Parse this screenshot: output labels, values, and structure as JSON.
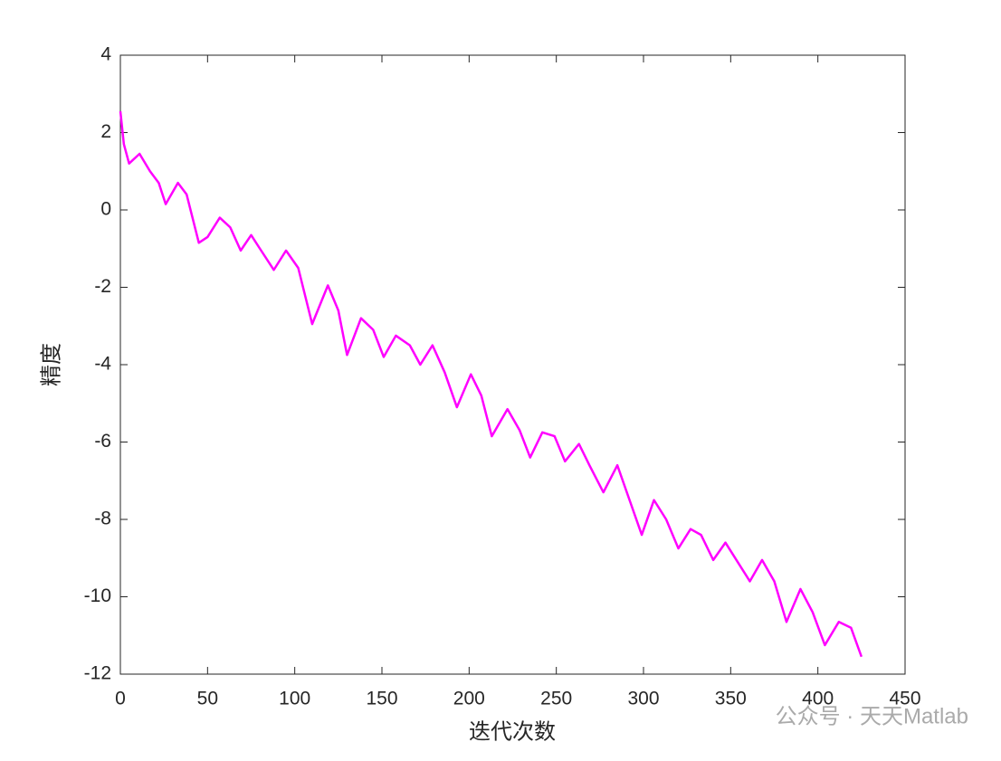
{
  "chart_data": {
    "type": "line",
    "xlabel": "迭代次数",
    "ylabel": "精度",
    "watermark": "公众号 · 天天Matlab",
    "x": [
      0,
      2,
      5,
      11,
      17,
      22,
      26,
      33,
      38,
      45,
      50,
      57,
      63,
      69,
      75,
      80,
      88,
      95,
      102,
      110,
      119,
      125,
      130,
      138,
      145,
      151,
      158,
      166,
      172,
      179,
      186,
      193,
      201,
      207,
      213,
      222,
      229,
      235,
      242,
      249,
      255,
      263,
      269,
      277,
      285,
      292,
      299,
      306,
      313,
      320,
      327,
      333,
      340,
      347,
      354,
      361,
      368,
      375,
      382,
      390,
      397,
      404,
      412,
      419,
      425
    ],
    "series": [
      {
        "name": "accuracy",
        "color": "#ff00ff",
        "values": [
          2.55,
          1.7,
          1.2,
          1.45,
          1.0,
          0.7,
          0.15,
          0.7,
          0.4,
          -0.85,
          -0.7,
          -0.2,
          -0.45,
          -1.05,
          -0.65,
          -1.0,
          -1.55,
          -1.05,
          -1.5,
          -2.95,
          -1.95,
          -2.6,
          -3.75,
          -2.8,
          -3.1,
          -3.8,
          -3.25,
          -3.5,
          -4.0,
          -3.5,
          -4.2,
          -5.1,
          -4.25,
          -4.8,
          -5.85,
          -5.15,
          -5.7,
          -6.4,
          -5.75,
          -5.85,
          -6.5,
          -6.05,
          -6.6,
          -7.3,
          -6.6,
          -7.5,
          -8.4,
          -7.5,
          -8.0,
          -8.75,
          -8.25,
          -8.4,
          -9.05,
          -8.6,
          -9.1,
          -9.6,
          -9.05,
          -9.6,
          -10.65,
          -9.8,
          -10.4,
          -11.25,
          -10.65,
          -10.8,
          -11.55
        ]
      }
    ],
    "xlim": [
      0,
      450
    ],
    "xticks": [
      0,
      50,
      100,
      150,
      200,
      250,
      300,
      350,
      400,
      450
    ],
    "ylim": [
      -12,
      4
    ],
    "yticks": [
      -12,
      -10,
      -8,
      -6,
      -4,
      -2,
      0,
      2,
      4
    ]
  }
}
